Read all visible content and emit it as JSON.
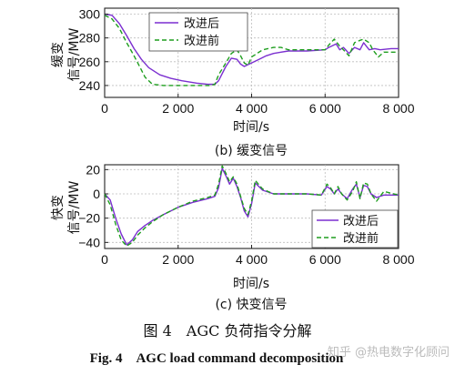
{
  "figure": {
    "title_cn": "图 4　AGC 负荷指令分解",
    "title_en": "Fig. 4　AGC load command decomposition"
  },
  "watermark": "知乎 @热电数字化顾问",
  "colors": {
    "improved_after": "#7b2fd0",
    "improved_before": "#1e9e1e",
    "grid": "#bdbdbd",
    "axis": "#222222"
  },
  "chart_data": [
    {
      "type": "line",
      "caption": "(b)  缓变信号",
      "ylabel_line1": "缓变",
      "ylabel_line2": "信号/MW",
      "xlabel": "时间/s",
      "xlim": [
        0,
        8000
      ],
      "ylim": [
        230,
        305
      ],
      "xticks": [
        0,
        2000,
        4000,
        6000,
        8000
      ],
      "xtick_labels": [
        "0",
        "2 000",
        "4 000",
        "6 000",
        "8 000"
      ],
      "yticks": [
        240,
        260,
        280,
        300
      ],
      "ytick_labels": [
        "240",
        "260",
        "280",
        "300"
      ],
      "grid": true,
      "legend_position": "top-left",
      "series": [
        {
          "name": "改进后",
          "style": "solid",
          "color": "#7b2fd0",
          "x": [
            0,
            200,
            400,
            600,
            800,
            1000,
            1200,
            1500,
            1800,
            2100,
            2500,
            2800,
            3000,
            3100,
            3300,
            3450,
            3600,
            3700,
            3800,
            4000,
            4200,
            4400,
            4600,
            4800,
            5000,
            5500,
            6000,
            6100,
            6300,
            6400,
            6500,
            6650,
            6800,
            6950,
            7050,
            7200,
            7350,
            7500,
            7800,
            8000
          ],
          "y": [
            300,
            299,
            292,
            282,
            271,
            262,
            255,
            249,
            246,
            244,
            242,
            241,
            241,
            244,
            256,
            263,
            262,
            258,
            256,
            259,
            262,
            265,
            267,
            268,
            269,
            269,
            270,
            272,
            275,
            270,
            272,
            267,
            272,
            270,
            276,
            270,
            271,
            270,
            271,
            271
          ]
        },
        {
          "name": "改进前",
          "style": "dashed",
          "color": "#1e9e1e",
          "x": [
            0,
            200,
            400,
            600,
            800,
            1000,
            1100,
            1300,
            1600,
            2000,
            2500,
            2900,
            3000,
            3100,
            3300,
            3450,
            3600,
            3700,
            3800,
            3900,
            4000,
            4300,
            4600,
            4800,
            5000,
            5500,
            6000,
            6100,
            6250,
            6400,
            6500,
            6650,
            6800,
            6950,
            7050,
            7200,
            7300,
            7450,
            7600,
            8000
          ],
          "y": [
            299,
            296,
            288,
            276,
            265,
            253,
            247,
            241,
            240,
            240,
            240,
            240,
            241,
            249,
            259,
            267,
            270,
            265,
            259,
            257,
            264,
            270,
            272,
            272,
            270,
            270,
            270,
            274,
            279,
            273,
            270,
            265,
            276,
            278,
            279,
            276,
            270,
            264,
            268,
            268
          ]
        }
      ]
    },
    {
      "type": "line",
      "caption": "(c)  快变信号",
      "ylabel_line1": "快变",
      "ylabel_line2": "信号/MW",
      "xlabel": "时间/s",
      "xlim": [
        0,
        8000
      ],
      "ylim": [
        -45,
        24
      ],
      "xticks": [
        0,
        2000,
        4000,
        6000,
        8000
      ],
      "xtick_labels": [
        "0",
        "2 000",
        "4 000",
        "6 000",
        "8 000"
      ],
      "yticks": [
        -40,
        -20,
        0,
        20
      ],
      "ytick_labels": [
        "−40",
        "−20",
        "0",
        "20"
      ],
      "grid": true,
      "legend_position": "bottom-right",
      "series": [
        {
          "name": "改进后",
          "style": "solid",
          "color": "#7b2fd0",
          "x": [
            0,
            150,
            300,
            450,
            600,
            750,
            900,
            1100,
            1300,
            1600,
            2000,
            2400,
            2800,
            3000,
            3100,
            3200,
            3300,
            3400,
            3500,
            3600,
            3700,
            3800,
            3900,
            4000,
            4100,
            4300,
            4600,
            5000,
            5500,
            5900,
            6050,
            6150,
            6250,
            6350,
            6450,
            6600,
            6750,
            6850,
            6950,
            7050,
            7150,
            7250,
            7400,
            7600,
            8000
          ],
          "y": [
            0,
            -5,
            -20,
            -33,
            -42,
            -38,
            -31,
            -26,
            -22,
            -17,
            -11,
            -7,
            -4,
            -2,
            5,
            21,
            15,
            8,
            13,
            6,
            -3,
            -14,
            -19,
            -8,
            9,
            3,
            0,
            0,
            0,
            -1,
            6,
            4,
            0,
            4,
            0,
            -4,
            4,
            8,
            -3,
            7,
            6,
            0,
            -3,
            -1,
            -1
          ]
        },
        {
          "name": "改进前",
          "style": "dashed",
          "color": "#1e9e1e",
          "x": [
            0,
            150,
            300,
            450,
            600,
            750,
            900,
            1100,
            1300,
            1600,
            2000,
            2400,
            2800,
            3000,
            3100,
            3200,
            3300,
            3400,
            3500,
            3600,
            3700,
            3800,
            3900,
            4000,
            4100,
            4300,
            4600,
            5000,
            5500,
            5900,
            6050,
            6150,
            6250,
            6350,
            6450,
            6600,
            6750,
            6850,
            6950,
            7050,
            7150,
            7250,
            7400,
            7600,
            8000
          ],
          "y": [
            0,
            -9,
            -25,
            -38,
            -43,
            -40,
            -34,
            -28,
            -23,
            -17,
            -11,
            -6,
            -3,
            -1,
            8,
            23,
            17,
            10,
            14,
            8,
            -2,
            -12,
            -17,
            -6,
            11,
            4,
            0,
            0,
            0,
            -1,
            8,
            5,
            0,
            6,
            0,
            -5,
            2,
            10,
            -4,
            9,
            8,
            0,
            -6,
            2,
            -1
          ]
        }
      ]
    }
  ]
}
